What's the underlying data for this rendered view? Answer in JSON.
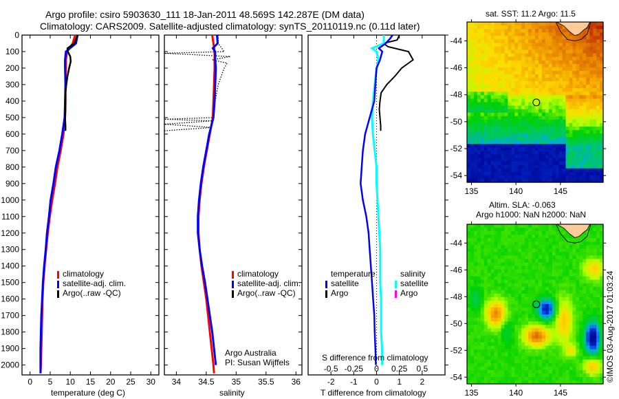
{
  "header": {
    "title_line1": "Argo profile: csiro 5903630_111 18-Jan-2011 48.569S 142.287E (DM data)",
    "title_line2": "Climatology: CARS2009. Satellite-adjusted climatology: synTS_20110119.nc (0.11d later)"
  },
  "colors": {
    "climatology": "#ff0000",
    "satellite": "#0000ff",
    "argo": "#000000",
    "salinity_satellite": "#00ffff",
    "salinity_argo": "#ff00ff"
  },
  "chart_data": [
    {
      "type": "line",
      "title": "",
      "xlabel": "temperature (deg C)",
      "ylabel": "",
      "xlim": [
        -2,
        32
      ],
      "ylim": [
        2060,
        0
      ],
      "xticks": [
        0,
        5,
        10,
        15,
        20,
        25,
        30
      ],
      "yticks": [
        0,
        100,
        200,
        300,
        400,
        500,
        600,
        700,
        800,
        900,
        1000,
        1100,
        1200,
        1300,
        1400,
        1500,
        1600,
        1700,
        1800,
        1900,
        2000
      ],
      "legend": [
        "climatology",
        "satellite-adj. clim.",
        "Argo(..raw -QC)"
      ],
      "legend_position": "center-right",
      "series": [
        {
          "name": "climatology",
          "depth": [
            0,
            50,
            100,
            150,
            200,
            300,
            400,
            500,
            600,
            700,
            800,
            900,
            1000,
            1100,
            1200,
            1300,
            1400,
            1500,
            1600,
            1700,
            1800,
            1900,
            2000,
            2050
          ],
          "values": [
            11.2,
            10.6,
            9.2,
            8.9,
            8.9,
            8.8,
            8.8,
            8.7,
            8.3,
            7.6,
            6.8,
            6.2,
            5.5,
            4.9,
            4.4,
            4.0,
            3.6,
            3.3,
            3.1,
            3.0,
            2.9,
            2.8,
            2.7,
            2.6
          ]
        },
        {
          "name": "satellite-adj. clim.",
          "depth": [
            0,
            50,
            100,
            150,
            200,
            300,
            400,
            500,
            600,
            700,
            800,
            900,
            1000,
            1100,
            1200,
            1300,
            1400,
            1500,
            1600,
            1700,
            1800,
            1900,
            2000,
            2050
          ],
          "values": [
            11.8,
            11.4,
            8.9,
            8.7,
            8.7,
            8.8,
            8.7,
            8.6,
            8.0,
            7.3,
            6.4,
            5.8,
            5.1,
            4.7,
            4.2,
            3.9,
            3.5,
            3.2,
            3.0,
            2.8,
            2.7,
            2.6,
            2.6,
            2.6
          ]
        },
        {
          "name": "Argo",
          "depth": [
            0,
            50,
            80,
            100,
            130,
            160,
            200,
            250,
            300,
            350,
            400,
            450,
            500,
            550,
            580
          ],
          "values": [
            11.8,
            11.0,
            9.3,
            9.4,
            10.0,
            10.1,
            9.7,
            9.3,
            9.0,
            8.8,
            8.8,
            8.8,
            8.7,
            8.8,
            8.8
          ]
        }
      ]
    },
    {
      "type": "line",
      "title": "",
      "xlabel": "salinity",
      "ylabel": "",
      "xlim": [
        33.8,
        36.1
      ],
      "ylim": [
        2060,
        0
      ],
      "xticks": [
        34,
        34.5,
        35,
        35.5,
        36
      ],
      "legend": [
        "climatology",
        "satellite-adj. clim.",
        "Argo(..raw -QC)"
      ],
      "legend_position": "center-right",
      "annotation": [
        "Argo Australia",
        "PI: Susan Wijffels"
      ],
      "series": [
        {
          "name": "climatology",
          "depth": [
            0,
            50,
            100,
            150,
            200,
            300,
            400,
            500,
            600,
            700,
            800,
            900,
            1000,
            1100,
            1200,
            1300,
            1400,
            1500,
            1600,
            1700,
            1800,
            1900,
            2000,
            2050
          ],
          "values": [
            34.6,
            34.62,
            34.64,
            34.64,
            34.64,
            34.63,
            34.62,
            34.61,
            34.56,
            34.51,
            34.46,
            34.42,
            34.39,
            34.37,
            34.37,
            34.39,
            34.42,
            34.46,
            34.5,
            34.53,
            34.56,
            34.59,
            34.62,
            34.63
          ]
        },
        {
          "name": "satellite-adj. clim.",
          "depth": [
            0,
            50,
            80,
            100,
            150,
            200,
            300,
            400,
            500,
            600,
            700,
            800,
            900,
            1000,
            1100,
            1200,
            1300,
            1400,
            1500,
            1600,
            1700,
            1800,
            1900,
            2000
          ],
          "values": [
            34.68,
            34.69,
            34.61,
            34.65,
            34.65,
            34.66,
            34.65,
            34.64,
            34.62,
            34.55,
            34.5,
            34.45,
            34.41,
            34.38,
            34.36,
            34.36,
            34.39,
            34.43,
            34.48,
            34.52,
            34.56,
            34.6,
            34.63,
            34.66
          ]
        },
        {
          "name": "Argo",
          "style": "dotted",
          "depth": [
            0,
            50,
            100,
            110,
            130,
            150,
            170,
            200,
            250,
            300,
            400,
            500,
            510,
            520,
            540,
            560,
            580
          ],
          "values": [
            34.7,
            34.7,
            34.8,
            33.8,
            34.9,
            34.6,
            34.85,
            34.8,
            34.75,
            34.7,
            34.65,
            34.62,
            33.8,
            34.6,
            33.8,
            34.6,
            33.8
          ]
        }
      ]
    },
    {
      "type": "line",
      "title": "",
      "xlabel": "T difference from climatology",
      "x2label": "S difference from climatology",
      "xlim": [
        -3,
        3
      ],
      "x2lim": [
        -0.75,
        0.75
      ],
      "ylim": [
        2060,
        0
      ],
      "xticks": [
        -2,
        -1,
        0,
        1,
        2
      ],
      "x2ticks": [
        -0.5,
        -0.25,
        0,
        0.25,
        0.5
      ],
      "legend_groups": [
        {
          "title": "temperature",
          "items": [
            "satellite",
            "Argo"
          ]
        },
        {
          "title": "salinity",
          "items": [
            "satellite",
            "Argo"
          ]
        }
      ],
      "legend_position": "lower-center",
      "series": [
        {
          "name": "temperature satellite",
          "axis": "T",
          "depth": [
            0,
            20,
            50,
            80,
            100,
            150,
            200,
            300,
            400,
            500,
            600,
            700,
            800,
            900,
            1000,
            1100,
            1200,
            1300,
            1400,
            1500,
            1600,
            1700,
            1800,
            1900,
            2000
          ],
          "values": [
            0.7,
            0.6,
            0.4,
            0.1,
            0.25,
            0.15,
            0.0,
            -0.05,
            -0.1,
            -0.3,
            -0.5,
            -0.6,
            -0.65,
            -0.7,
            -0.6,
            -0.45,
            -0.35,
            -0.3,
            -0.25,
            -0.2,
            -0.15,
            -0.1,
            -0.08,
            -0.05,
            -0.03
          ]
        },
        {
          "name": "temperature Argo",
          "axis": "T",
          "depth": [
            0,
            30,
            50,
            70,
            100,
            150,
            200,
            250,
            300,
            350,
            400,
            450,
            500,
            550,
            580
          ],
          "values": [
            1.0,
            0.9,
            0.3,
            0.5,
            1.4,
            1.6,
            1.1,
            0.8,
            0.45,
            0.2,
            0.15,
            0.12,
            0.15,
            0.18,
            0.18
          ]
        },
        {
          "name": "salinity satellite",
          "axis": "S",
          "depth": [
            0,
            50,
            80,
            100,
            150,
            200,
            300,
            400,
            500,
            600,
            700,
            800,
            900,
            1000,
            1100,
            1200,
            1300,
            1400,
            1500,
            1600,
            1700,
            1800,
            1900,
            2000
          ],
          "values": [
            0.08,
            0.08,
            -0.05,
            0.0,
            0.02,
            0.0,
            -0.02,
            -0.04,
            -0.05,
            -0.04,
            -0.02,
            0.0,
            0.0,
            0.01,
            0.02,
            0.03,
            0.04,
            0.04,
            0.04,
            0.05,
            0.05,
            0.05,
            0.06,
            0.06
          ]
        }
      ]
    },
    {
      "type": "heatmap",
      "title": "sat. SST: 11.2 Argo: 11.5",
      "xlim": [
        134.5,
        149.8
      ],
      "ylim": [
        -54.5,
        -42.6
      ],
      "xticks": [
        135,
        140,
        145
      ],
      "yticks": [
        -44,
        -46,
        -48,
        -50,
        -52,
        -54
      ],
      "marker": {
        "lon": 142.287,
        "lat": -48.569
      }
    },
    {
      "type": "heatmap",
      "title": "Altim. SLA: -0.063",
      "subtitle": "Argo h1000: NaN h2000: NaN",
      "xlim": [
        134.5,
        149.8
      ],
      "ylim": [
        -54.5,
        -42.6
      ],
      "xticks": [
        135,
        140,
        145
      ],
      "yticks": [
        -44,
        -46,
        -48,
        -50,
        -52,
        -54
      ],
      "marker": {
        "lon": 142.287,
        "lat": -48.569
      }
    }
  ],
  "footer": {
    "credit": "©IMOS 03-Aug-2017 01:03:24"
  }
}
